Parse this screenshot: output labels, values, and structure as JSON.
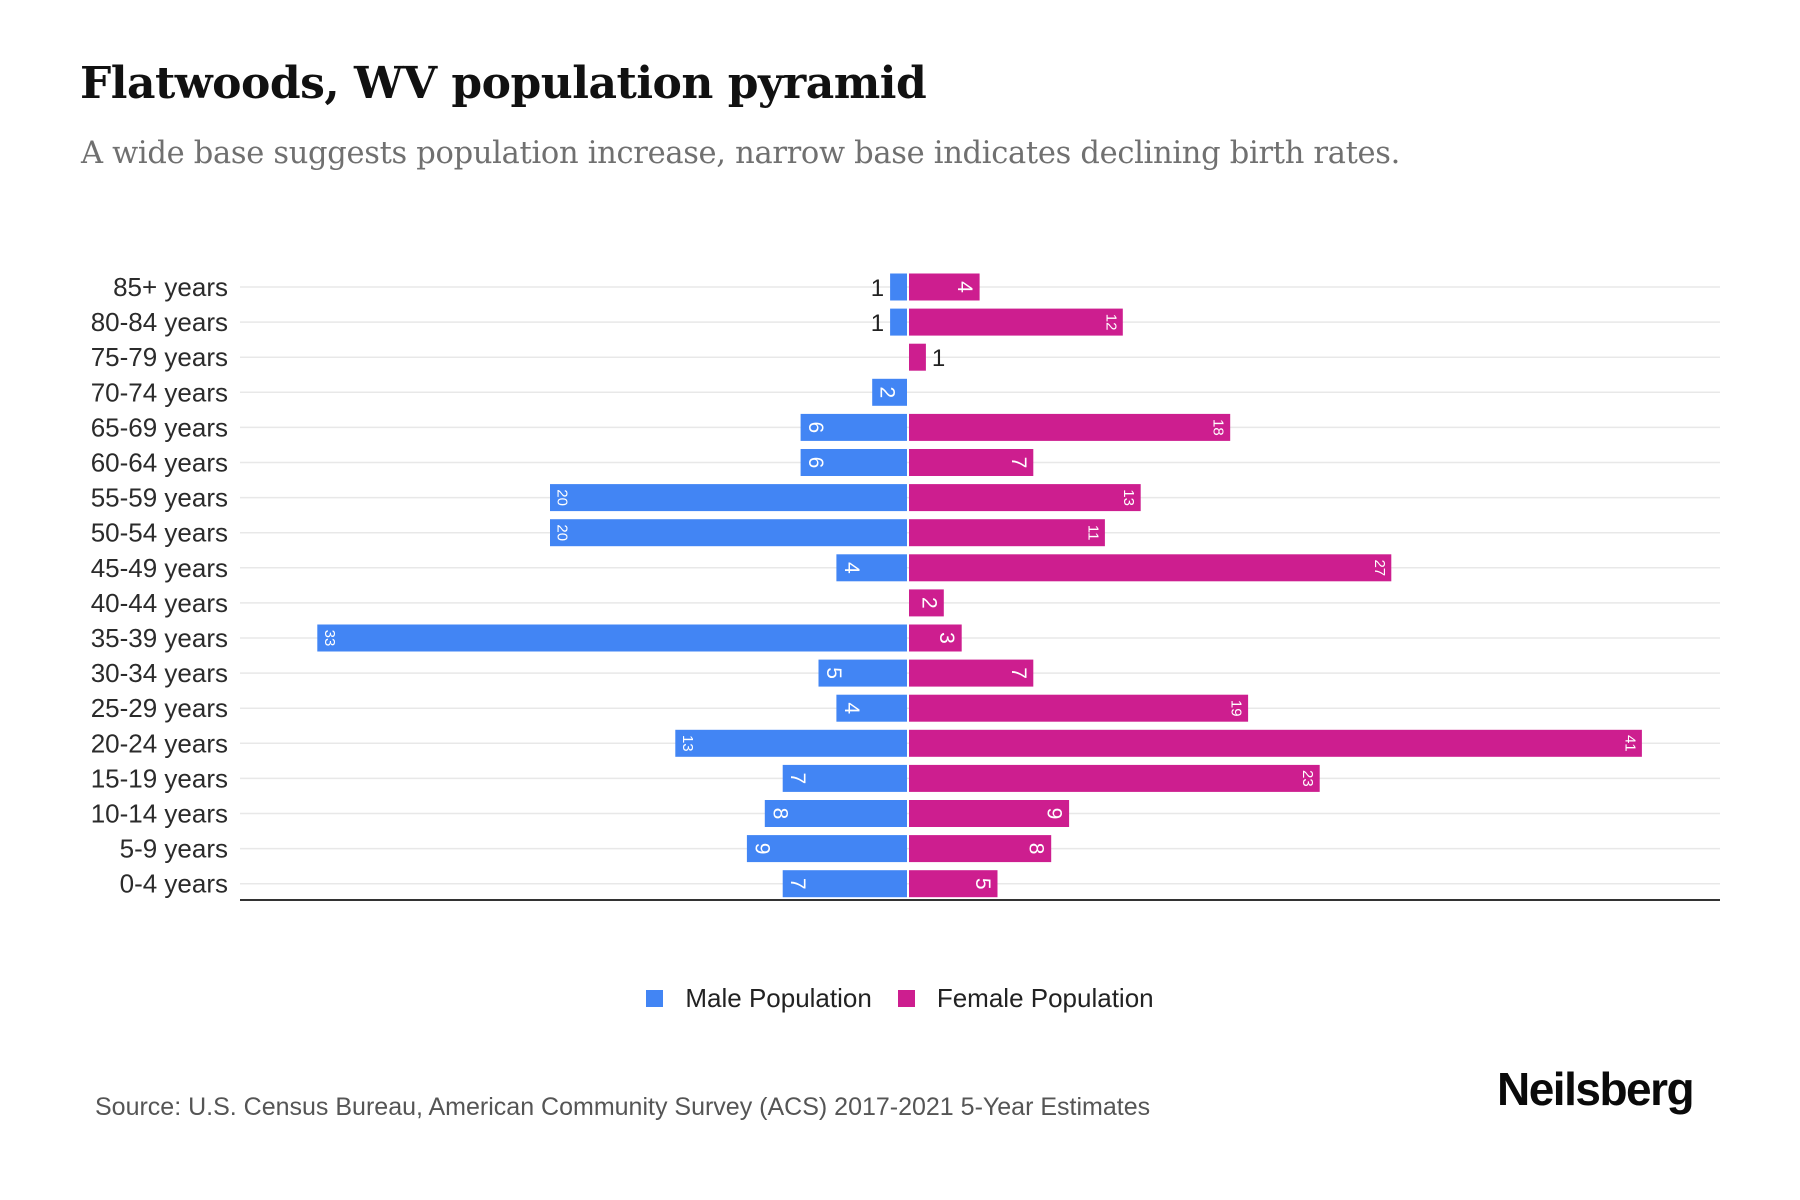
{
  "header": {
    "title": "Flatwoods, WV population pyramid",
    "subtitle": "A wide base suggests population increase, narrow base indicates declining birth rates."
  },
  "colors": {
    "male": "#4285f4",
    "female": "#cd1e8f",
    "grid": "#e8e8e8",
    "axis": "#333333"
  },
  "chart_data": {
    "type": "bar",
    "orientation": "horizontal-diverging",
    "title": "Flatwoods, WV population pyramid",
    "subtitle": "A wide base suggests population increase, narrow base indicates declining birth rates.",
    "xlabel": "",
    "ylabel": "",
    "grid": true,
    "legend_position": "bottom-center",
    "categories": [
      "85+ years",
      "80-84 years",
      "75-79 years",
      "70-74 years",
      "65-69 years",
      "60-64 years",
      "55-59 years",
      "50-54 years",
      "45-49 years",
      "40-44 years",
      "35-39 years",
      "30-34 years",
      "25-29 years",
      "20-24 years",
      "15-19 years",
      "10-14 years",
      "5-9 years",
      "0-4 years"
    ],
    "series": [
      {
        "name": "Male Population",
        "values": [
          1,
          1,
          0,
          2,
          6,
          6,
          20,
          20,
          4,
          0,
          33,
          5,
          4,
          13,
          7,
          8,
          9,
          7
        ]
      },
      {
        "name": "Female Population",
        "values": [
          4,
          12,
          1,
          0,
          18,
          7,
          13,
          11,
          27,
          2,
          3,
          7,
          19,
          41,
          23,
          9,
          8,
          5
        ]
      }
    ],
    "xlim": [
      -33,
      41
    ]
  },
  "legend": {
    "items": [
      {
        "label": "Male Population",
        "series": "male"
      },
      {
        "label": "Female Population",
        "series": "female"
      }
    ]
  },
  "footer": {
    "source": "Source: U.S. Census Bureau, American Community Survey (ACS) 2017-2021 5-Year Estimates",
    "logo": "Neilsberg"
  }
}
